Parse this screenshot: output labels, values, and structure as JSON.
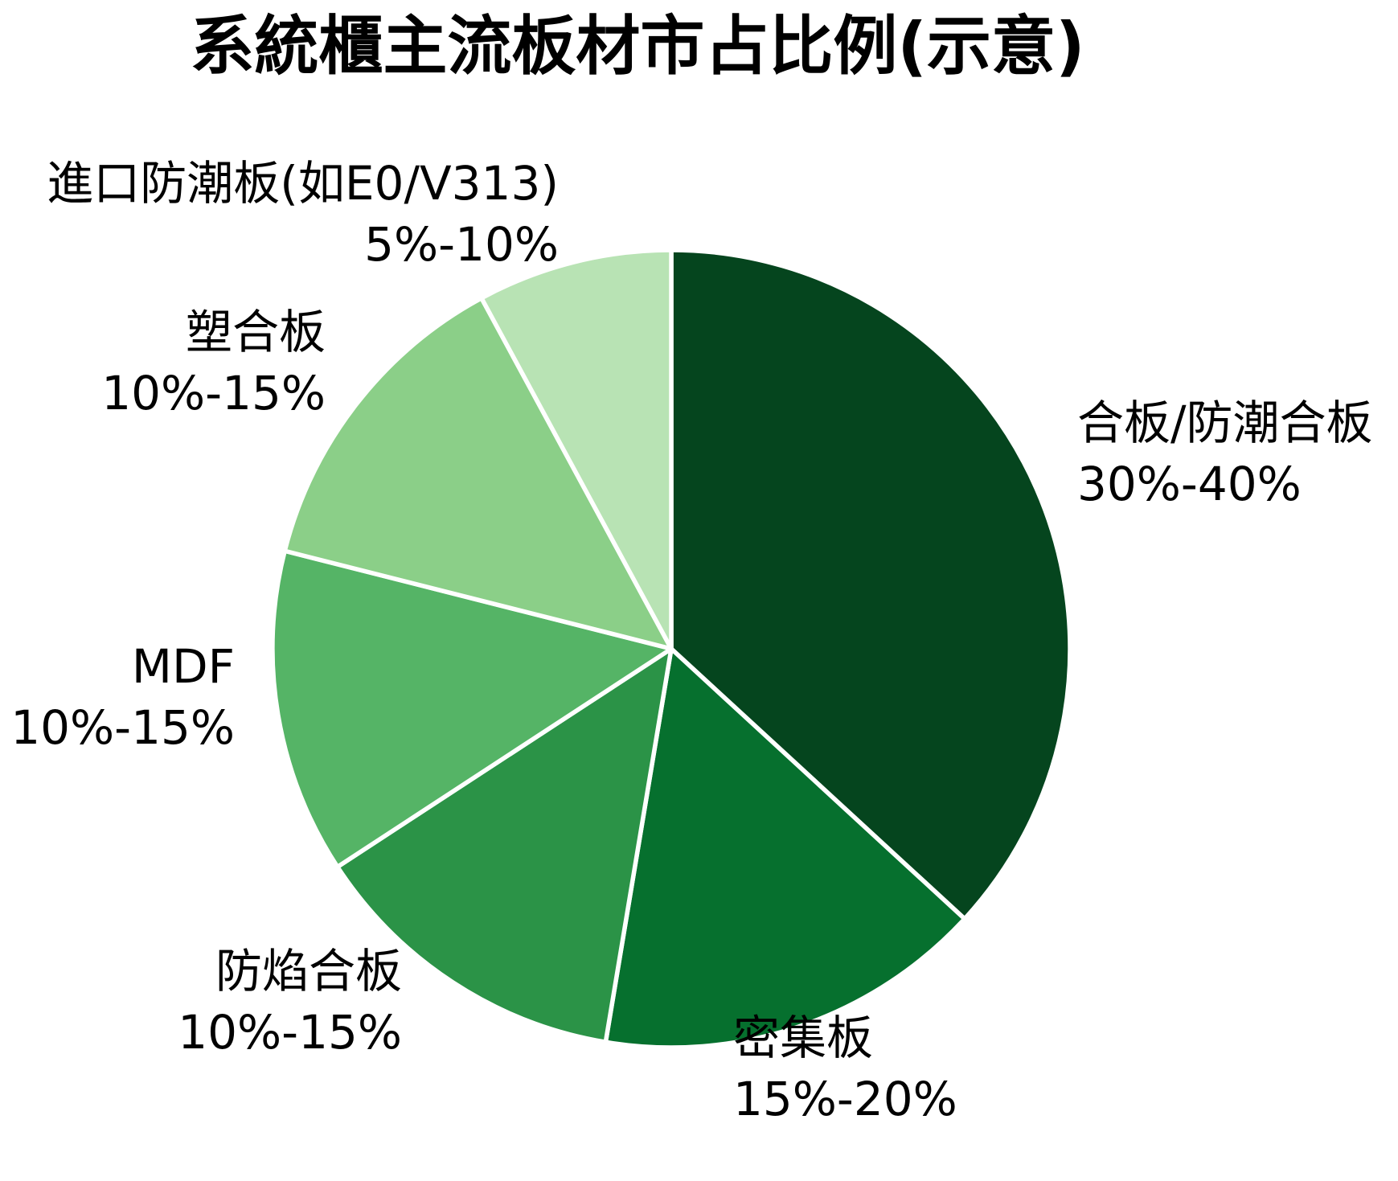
{
  "title": "系統櫃主流板材市占比例(示意)",
  "colors": {
    "background": "#ffffff",
    "text": "#000000",
    "slice_border": "#ffffff"
  },
  "chart_data": {
    "type": "pie",
    "title": "系統櫃主流板材市占比例(示意)",
    "start_angle": "12-oclock",
    "direction": "clockwise",
    "legend_position": "none",
    "labels_position": "outside",
    "slices": [
      {
        "label": "合板/防潮合板",
        "pct_label": "30%-40%",
        "value": 35,
        "color": "#05451e"
      },
      {
        "label": "密集板",
        "pct_label": "15%-20%",
        "value": 15,
        "color": "#06702e"
      },
      {
        "label": "防焰合板",
        "pct_label": "10%-15%",
        "value": 12.5,
        "color": "#2b9347"
      },
      {
        "label": "MDF",
        "pct_label": "10%-15%",
        "value": 12.5,
        "color": "#55b466"
      },
      {
        "label": "塑合板",
        "pct_label": "10%-15%",
        "value": 12.5,
        "color": "#8bcf88"
      },
      {
        "label": "進口防潮板(如E0/V313)",
        "pct_label": "5%-10%",
        "value": 7.5,
        "color": "#b8e3b4"
      }
    ]
  }
}
